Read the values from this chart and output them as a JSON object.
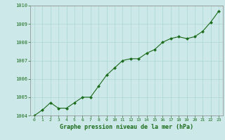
{
  "x": [
    0,
    1,
    2,
    3,
    4,
    5,
    6,
    7,
    8,
    9,
    10,
    11,
    12,
    13,
    14,
    15,
    16,
    17,
    18,
    19,
    20,
    21,
    22,
    23
  ],
  "y": [
    1004.0,
    1004.3,
    1004.7,
    1004.4,
    1004.4,
    1004.7,
    1005.0,
    1005.0,
    1005.6,
    1006.2,
    1006.6,
    1007.0,
    1007.1,
    1007.1,
    1007.4,
    1007.6,
    1008.0,
    1008.2,
    1008.3,
    1008.2,
    1008.3,
    1008.6,
    1009.1,
    1009.7
  ],
  "line_color": "#1a6b1a",
  "marker_color": "#1a6b1a",
  "bg_color": "#cce8e8",
  "grid_color": "#aad4d4",
  "xlabel": "Graphe pression niveau de la mer (hPa)",
  "xlabel_color": "#1a6b1a",
  "tick_color": "#1a6b1a",
  "ylim": [
    1004,
    1010
  ],
  "xlim": [
    -0.5,
    23.5
  ],
  "yticks": [
    1004,
    1005,
    1006,
    1007,
    1008,
    1009,
    1010
  ],
  "xticks": [
    0,
    1,
    2,
    3,
    4,
    5,
    6,
    7,
    8,
    9,
    10,
    11,
    12,
    13,
    14,
    15,
    16,
    17,
    18,
    19,
    20,
    21,
    22,
    23
  ],
  "spine_color": "#888888",
  "bottom_bar_color": "#cce8e8"
}
